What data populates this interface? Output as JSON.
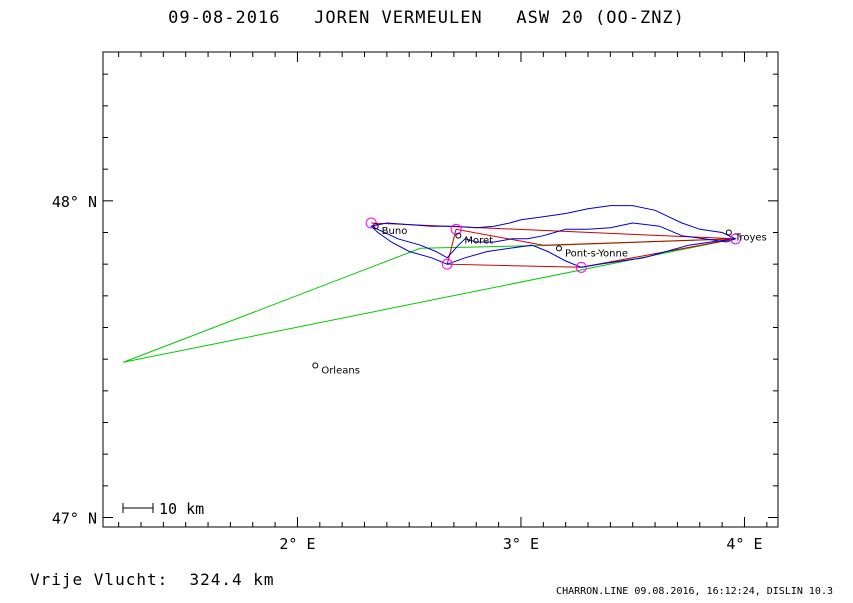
{
  "header": {
    "title": "09-08-2016   JOREN VERMEULEN   ASW 20 (OO-ZNZ)"
  },
  "footer": {
    "distance": "Vrije Vlucht:  324.4 km",
    "credits": "CHARRON.LINE 09.08.2016, 16:12:24, DISLIN 10.3"
  },
  "chart_data": {
    "type": "scatter",
    "title": "09-08-2016   JOREN VERMEULEN   ASW 20 (OO-ZNZ)",
    "xlim": [
      1.13,
      4.15
    ],
    "ylim": [
      46.97,
      48.47
    ],
    "x_ticks": [
      {
        "value": 2,
        "label": "2° E"
      },
      {
        "value": 3,
        "label": "3° E"
      },
      {
        "value": 4,
        "label": "4° E"
      }
    ],
    "y_ticks": [
      {
        "value": 48,
        "label": "48° N"
      },
      {
        "value": 47,
        "label": "47° N"
      }
    ],
    "scale_bar": {
      "label": "10 km",
      "km": 10
    },
    "places": [
      {
        "name": "Buno",
        "lon": 2.35,
        "lat": 47.92
      },
      {
        "name": "Moret",
        "lon": 2.72,
        "lat": 47.89
      },
      {
        "name": "Pont-s-Yonne",
        "lon": 3.17,
        "lat": 47.85
      },
      {
        "name": "Troyes",
        "lon": 3.93,
        "lat": 47.9
      },
      {
        "name": "Orleans",
        "lon": 2.08,
        "lat": 47.48
      }
    ],
    "turnpoints": [
      {
        "lon": 2.33,
        "lat": 47.93
      },
      {
        "lon": 2.71,
        "lat": 47.91
      },
      {
        "lon": 2.67,
        "lat": 47.8
      },
      {
        "lon": 3.27,
        "lat": 47.79
      },
      {
        "lon": 3.96,
        "lat": 47.88
      }
    ],
    "series": [
      {
        "color": "#00cc00",
        "points": [
          [
            1.22,
            47.49
          ],
          [
            2.55,
            47.85
          ],
          [
            3.15,
            47.86
          ],
          [
            3.96,
            47.88
          ],
          [
            1.22,
            47.49
          ]
        ]
      },
      {
        "color": "#cc0000",
        "points": [
          [
            2.33,
            47.93
          ],
          [
            3.96,
            47.88
          ],
          [
            3.27,
            47.79
          ],
          [
            2.67,
            47.8
          ],
          [
            2.71,
            47.91
          ],
          [
            3.1,
            47.86
          ],
          [
            3.96,
            47.88
          ]
        ]
      },
      {
        "color": "#0000cc",
        "points": [
          [
            2.33,
            47.92
          ],
          [
            2.45,
            47.88
          ],
          [
            2.55,
            47.86
          ],
          [
            2.62,
            47.84
          ],
          [
            2.67,
            47.82
          ],
          [
            2.72,
            47.86
          ],
          [
            2.75,
            47.88
          ],
          [
            2.8,
            47.87
          ],
          [
            2.88,
            47.87
          ],
          [
            2.96,
            47.88
          ],
          [
            3.03,
            47.88
          ],
          [
            3.1,
            47.89
          ],
          [
            3.15,
            47.9
          ],
          [
            3.2,
            47.91
          ],
          [
            3.3,
            47.91
          ],
          [
            3.4,
            47.915
          ],
          [
            3.5,
            47.93
          ],
          [
            3.62,
            47.92
          ],
          [
            3.72,
            47.89
          ],
          [
            3.82,
            47.88
          ],
          [
            3.92,
            47.87
          ],
          [
            3.96,
            47.88
          ],
          [
            3.9,
            47.9
          ],
          [
            3.8,
            47.91
          ],
          [
            3.72,
            47.93
          ],
          [
            3.66,
            47.95
          ],
          [
            3.6,
            47.97
          ],
          [
            3.5,
            47.985
          ],
          [
            3.4,
            47.985
          ],
          [
            3.3,
            47.975
          ],
          [
            3.2,
            47.96
          ],
          [
            3.1,
            47.95
          ],
          [
            3.0,
            47.94
          ],
          [
            2.95,
            47.93
          ],
          [
            2.88,
            47.92
          ],
          [
            2.8,
            47.915
          ],
          [
            2.7,
            47.92
          ],
          [
            2.6,
            47.92
          ],
          [
            2.5,
            47.925
          ],
          [
            2.4,
            47.93
          ],
          [
            2.33,
            47.92
          ],
          [
            2.36,
            47.9
          ],
          [
            2.42,
            47.87
          ],
          [
            2.5,
            47.84
          ],
          [
            2.6,
            47.82
          ],
          [
            2.67,
            47.8
          ],
          [
            2.75,
            47.82
          ],
          [
            2.85,
            47.84
          ],
          [
            2.95,
            47.85
          ],
          [
            3.05,
            47.86
          ],
          [
            3.12,
            47.84
          ],
          [
            3.2,
            47.81
          ],
          [
            3.27,
            47.79
          ],
          [
            3.35,
            47.8
          ],
          [
            3.45,
            47.81
          ],
          [
            3.55,
            47.82
          ],
          [
            3.65,
            47.84
          ],
          [
            3.75,
            47.86
          ],
          [
            3.85,
            47.87
          ],
          [
            3.96,
            47.88
          ]
        ]
      }
    ]
  }
}
